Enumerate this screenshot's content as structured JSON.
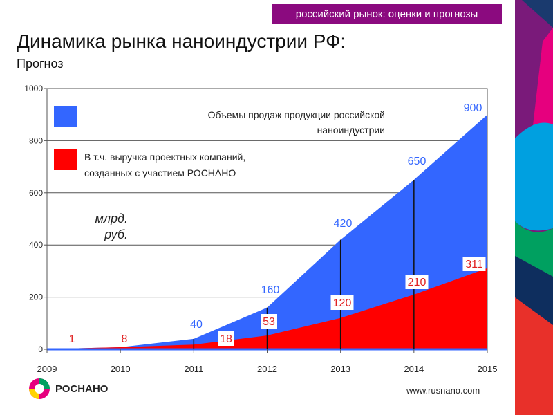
{
  "banner": "российский рынок: оценки и прогнозы",
  "title": "Динамика рынка наноиндустрии РФ:",
  "subtitle": "Прогноз",
  "logo_text": "РОСНАНО",
  "url": "www.rusnano.com",
  "colors": {
    "blue": "#3366ff",
    "red": "#ff0000",
    "banner": "#8b0a7f"
  },
  "chart_data": {
    "type": "area",
    "x": [
      2009,
      2010,
      2011,
      2012,
      2013,
      2014,
      2015
    ],
    "xlabels": [
      "2009",
      "2010",
      "2011",
      "2012",
      "2013",
      "2014",
      "2015"
    ],
    "ylim": [
      0,
      1000
    ],
    "yticks": [
      0,
      200,
      400,
      600,
      800,
      1000
    ],
    "unit_label": [
      "млрд.",
      "руб."
    ],
    "series": [
      {
        "name": "Объемы продаж продукции российской наноиндустрии",
        "values": [
          1,
          8,
          40,
          160,
          420,
          650,
          900
        ],
        "labels": [
          "",
          "",
          "40",
          "160",
          "420",
          "650",
          "900"
        ],
        "color": "#3366ff"
      },
      {
        "name": "В т.ч. выручка проектных компаний, созданных с участием РОСНАНО",
        "values": [
          1,
          8,
          18,
          53,
          120,
          210,
          311
        ],
        "labels": [
          "1",
          "8",
          "18",
          "53",
          "120",
          "210",
          "311"
        ],
        "color": "#ff0000"
      }
    ],
    "legend": {
      "blue_lines": [
        "Объемы продаж продукции российской",
        "наноиндустрии"
      ],
      "red_lines": [
        "В т.ч. выручка проектных компаний,",
        "созданных с участием РОСНАНО"
      ]
    },
    "grid": true
  }
}
